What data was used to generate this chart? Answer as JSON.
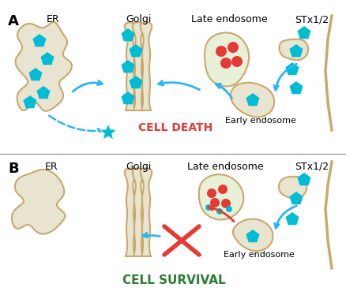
{
  "bg_color": "#ffffff",
  "organelle_fill": "#e8e4d0",
  "organelle_edge": "#c8a96e",
  "late_endo_fill": "#e8f0d8",
  "late_endo_edge": "#c8a96e",
  "blue_color": "#00bcd4",
  "red_color": "#e53935",
  "green_color": "#2e7d32",
  "arrow_blue": "#29b6f6",
  "arrow_red": "#e53935",
  "arrow_goldi": "#c8a96e",
  "label_A": "A",
  "label_B": "B",
  "label_ER_A": "ER",
  "label_Golgi_A": "Golgi",
  "label_Late_A": "Late endosome",
  "label_STx_A": "STx1/2",
  "label_Early_A": "Early endosome",
  "label_cell_death": "CELL DEATH",
  "label_ER_B": "ER",
  "label_Golgi_B": "Golgi",
  "label_Late_B": "Late endosome",
  "label_STx_B": "STx1/2",
  "label_Early_B": "Early endosome",
  "label_cell_survival": "CELL SURVIVAL",
  "figsize": [
    4.39,
    3.88
  ],
  "dpi": 100
}
